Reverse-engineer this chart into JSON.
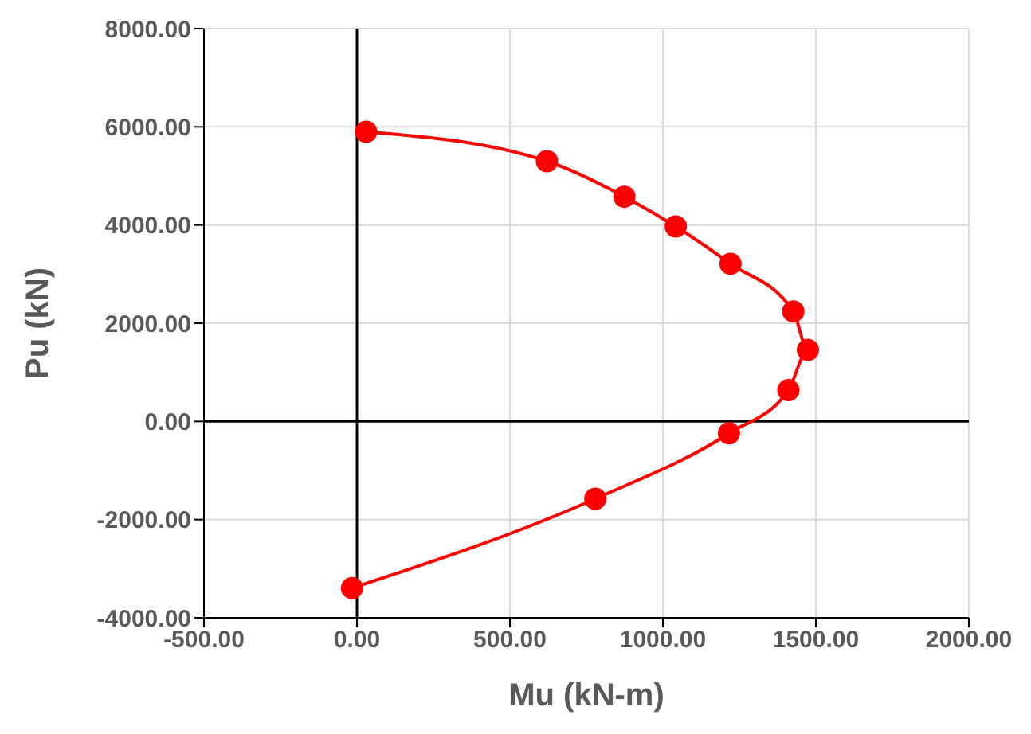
{
  "chart_data": {
    "type": "line",
    "xlabel": "Mu (kN-m)",
    "ylabel": "Pu (kN)",
    "series": [
      {
        "color": "#ff0000",
        "x": [
          30,
          621,
          874,
          1042,
          1221,
          1426,
          1474,
          1410,
          1216,
          779,
          -16
        ],
        "values": [
          5900,
          5300,
          4575,
          3970,
          3210,
          2240,
          1455,
          636,
          -242,
          -1576,
          -3394
        ]
      }
    ],
    "xlim": [
      -500,
      2000
    ],
    "xticks": [
      {
        "value": -500,
        "label": "-500.00"
      },
      {
        "value": 0,
        "label": "0.00"
      },
      {
        "value": 500,
        "label": "500.00"
      },
      {
        "value": 1000,
        "label": "1000.00"
      },
      {
        "value": 1500,
        "label": "1500.00"
      },
      {
        "value": 2000,
        "label": "2000.00"
      }
    ],
    "ylim": [
      -4000,
      8000
    ],
    "yticks": [
      {
        "value": -4000,
        "label": "-4000.00"
      },
      {
        "value": -2000,
        "label": "-2000.00"
      },
      {
        "value": 0,
        "label": "0.00"
      },
      {
        "value": 2000,
        "label": "2000.00"
      },
      {
        "value": 4000,
        "label": "4000.00"
      },
      {
        "value": 6000,
        "label": "6000.00"
      },
      {
        "value": 8000,
        "label": "8000.00"
      }
    ],
    "grid": true,
    "marker": "circle",
    "line_style": "solid"
  }
}
